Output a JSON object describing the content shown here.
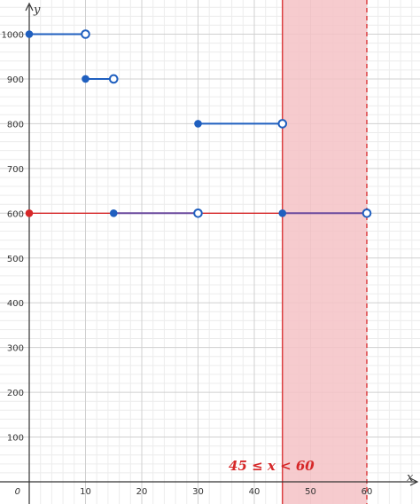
{
  "chart_data": {
    "type": "scatter",
    "xlabel": "x",
    "ylabel": "y",
    "xlim": [
      0,
      68
    ],
    "ylim": [
      -40,
      1060
    ],
    "x_ticks": [
      0,
      10,
      20,
      30,
      40,
      50,
      60
    ],
    "y_ticks": [
      100,
      200,
      300,
      400,
      500,
      600,
      700,
      800,
      900,
      1000
    ],
    "grid": true,
    "series": [
      {
        "from": 0,
        "to": 10,
        "y": 1000,
        "left": "closed",
        "right": "open"
      },
      {
        "from": 10,
        "to": 15,
        "y": 900,
        "left": "closed",
        "right": "open"
      },
      {
        "from": 15,
        "to": 30,
        "y": 600,
        "left": "closed",
        "right": "open"
      },
      {
        "from": 30,
        "to": 45,
        "y": 800,
        "left": "closed",
        "right": "open"
      },
      {
        "from": 45,
        "to": 60,
        "y": 600,
        "left": "closed",
        "right": "open"
      }
    ],
    "highlight_band": {
      "x_from": 45,
      "x_to": 60,
      "left": "solid",
      "right": "dashed"
    },
    "horizontal_line": {
      "y": 600,
      "start_point": "closed"
    },
    "annotation": "45 ≤ x < 60",
    "colors": {
      "step": "#1f5fbf",
      "highlight": "#d62728",
      "band_fill": "#f4c2c5",
      "purple": "#6b4a9e"
    }
  }
}
